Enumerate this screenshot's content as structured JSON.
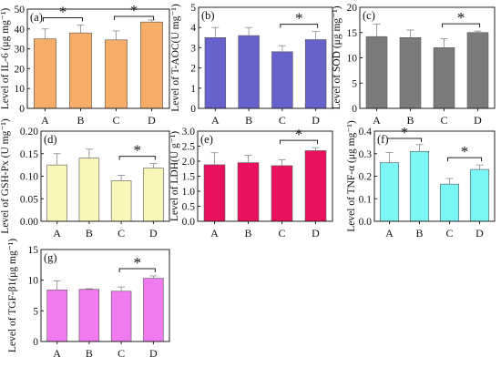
{
  "chart_data": [
    {
      "panel": "(a)",
      "type": "bar",
      "ylabel": "Level of IL-6 (μg mg⁻¹)",
      "categories": [
        "A",
        "B",
        "C",
        "D"
      ],
      "values": [
        35,
        38,
        34.5,
        43.5
      ],
      "errors": [
        5,
        4,
        4.5,
        1
      ],
      "ylim": [
        0,
        50
      ],
      "yticks": [
        "0",
        "10",
        "20",
        "30",
        "40",
        "50"
      ],
      "color": "#F5AD67",
      "significance": [
        {
          "from": "A",
          "to": "B",
          "label": "*"
        },
        {
          "from": "C",
          "to": "D",
          "label": "*"
        }
      ]
    },
    {
      "panel": "(b)",
      "type": "bar",
      "ylabel": "Level of T-AOC(U mg⁻¹)",
      "categories": [
        "A",
        "B",
        "C",
        "D"
      ],
      "values": [
        3.5,
        3.6,
        2.8,
        3.4
      ],
      "errors": [
        0.5,
        0.4,
        0.3,
        0.4
      ],
      "ylim": [
        0,
        5
      ],
      "yticks": [
        "0",
        "1",
        "2",
        "3",
        "4",
        "5"
      ],
      "color": "#6563CB",
      "significance": [
        {
          "from": "C",
          "to": "D",
          "label": "*"
        }
      ]
    },
    {
      "panel": "(c)",
      "type": "bar",
      "ylabel": "Level of SOD (μg mg⁻¹)",
      "categories": [
        "A",
        "B",
        "C",
        "D"
      ],
      "values": [
        14.2,
        14,
        12,
        15
      ],
      "errors": [
        2.5,
        1.5,
        1.8,
        0.3
      ],
      "ylim": [
        0,
        20
      ],
      "yticks": [
        "0",
        "5",
        "10",
        "15",
        "20"
      ],
      "color": "#7B7B7B",
      "significance": [
        {
          "from": "C",
          "to": "D",
          "label": "*"
        }
      ]
    },
    {
      "panel": "(d)",
      "type": "bar",
      "ylabel": "Level of GSH-Px (U mg⁻¹)",
      "categories": [
        "A",
        "B",
        "C",
        "D"
      ],
      "values": [
        0.125,
        0.14,
        0.09,
        0.118
      ],
      "errors": [
        0.025,
        0.02,
        0.012,
        0.01
      ],
      "ylim": [
        0,
        0.2
      ],
      "yticks": [
        "0.00",
        "0.05",
        "0.10",
        "0.15",
        "0.20"
      ],
      "color": "#FAF5B9",
      "significance": [
        {
          "from": "C",
          "to": "D",
          "label": "*"
        }
      ]
    },
    {
      "panel": "(e)",
      "type": "bar",
      "ylabel": "Level of LDH(U g⁻¹)",
      "categories": [
        "A",
        "B",
        "C",
        "D"
      ],
      "values": [
        1.88,
        1.95,
        1.85,
        2.35
      ],
      "errors": [
        0.4,
        0.25,
        0.2,
        0.1
      ],
      "ylim": [
        0,
        3.0
      ],
      "yticks": [
        "0.0",
        "0.5",
        "1.0",
        "1.5",
        "2.0",
        "2.5",
        "3.0"
      ],
      "color": "#E8105F",
      "significance": [
        {
          "from": "C",
          "to": "D",
          "label": "*"
        }
      ]
    },
    {
      "panel": "(f)",
      "type": "bar",
      "ylabel": "Level of TNF-α (μg mg⁻¹)",
      "categories": [
        "A",
        "B",
        "C",
        "D"
      ],
      "values": [
        0.26,
        0.31,
        0.165,
        0.23
      ],
      "errors": [
        0.045,
        0.03,
        0.025,
        0.02
      ],
      "ylim": [
        0,
        0.4
      ],
      "yticks": [
        "0.0",
        "0.1",
        "0.2",
        "0.3",
        "0.4"
      ],
      "color": "#7CF5F5",
      "significance": [
        {
          "from": "A",
          "to": "B",
          "label": "*"
        },
        {
          "from": "C",
          "to": "D",
          "label": "*"
        }
      ]
    },
    {
      "panel": "(g)",
      "type": "bar",
      "ylabel": "Level of TGF-β1(μg mg⁻¹)",
      "categories": [
        "A",
        "B",
        "C",
        "D"
      ],
      "values": [
        8.4,
        8.5,
        8.2,
        10.3
      ],
      "errors": [
        1.5,
        0.1,
        0.7,
        0.4
      ],
      "ylim": [
        0,
        15
      ],
      "yticks": [
        "0",
        "5",
        "10",
        "15"
      ],
      "color": "#F07BF0",
      "significance": [
        {
          "from": "C",
          "to": "D",
          "label": "*"
        }
      ]
    }
  ]
}
